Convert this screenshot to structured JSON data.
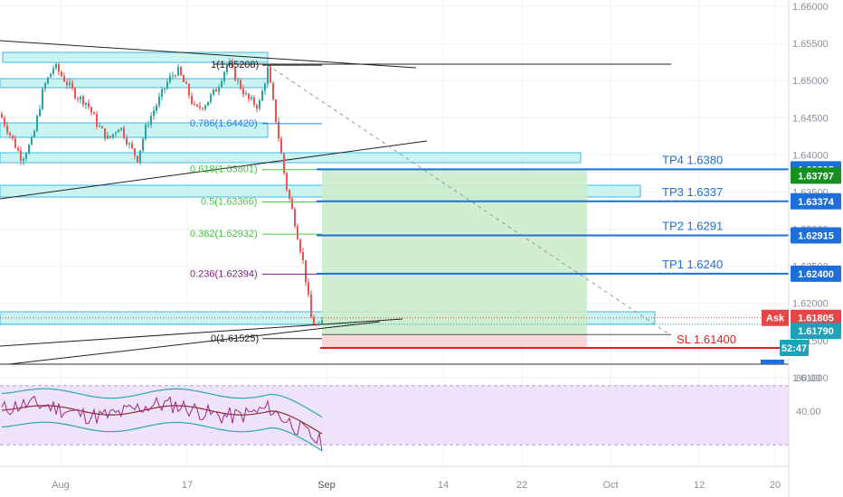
{
  "chart_data": {
    "type": "candlestick",
    "price_axis": {
      "ticks": [
        "1.66000",
        "1.65500",
        "1.65000",
        "1.64500",
        "1.64000",
        "1.63500",
        "1.63000",
        "1.62500",
        "1.62000",
        "1.61500",
        "1.61000"
      ],
      "ylim": [
        1.613,
        1.662
      ]
    },
    "time_axis": {
      "ticks": [
        "Aug",
        "17",
        "Sep",
        "14",
        "22",
        "Oct",
        "12",
        "20"
      ]
    },
    "rsi_axis": {
      "ticks": [
        "80.00",
        "40.00"
      ],
      "ylim": [
        0,
        100
      ]
    },
    "fibonacci": [
      {
        "label": "1(1.65208)",
        "price": 1.65208,
        "color": "#222222"
      },
      {
        "label": "0.786(1.64420)",
        "price": 1.6442,
        "color": "#2a7de1"
      },
      {
        "label": "0.618(1.63801)",
        "price": 1.63801,
        "color": "#43c443"
      },
      {
        "label": "0.5(1.63366)",
        "price": 1.63366,
        "color": "#43c443"
      },
      {
        "label": "0.382(1.62932)",
        "price": 1.62932,
        "color": "#43c443"
      },
      {
        "label": "0.236(1.62394)",
        "price": 1.62394,
        "color": "#7b1f7b"
      },
      {
        "label": "0(1.61525)",
        "price": 1.61525,
        "color": "#222222"
      }
    ],
    "targets": [
      {
        "label": "TP4 1.6380",
        "price": 1.63805
      },
      {
        "label": "TP3 1.6337",
        "price": 1.63374
      },
      {
        "label": "TP2 1.6291",
        "price": 1.62915
      },
      {
        "label": "TP1 1.6240",
        "price": 1.624
      }
    ],
    "stop_loss": {
      "label": "SL 1.61400",
      "price": 1.614
    },
    "price_badges": [
      {
        "text": "1.63805",
        "price": 1.63805,
        "color": "#1e6fd9"
      },
      {
        "text": "1.63797",
        "price": 1.6372,
        "color": "#16911e"
      },
      {
        "text": "1.63374",
        "price": 1.63374,
        "color": "#1e6fd9"
      },
      {
        "text": "1.62915",
        "price": 1.62915,
        "color": "#1e6fd9"
      },
      {
        "text": "1.62400",
        "price": 1.624,
        "color": "#1e6fd9"
      },
      {
        "text": "1.61805",
        "price": 1.61805,
        "color": "#e64545"
      },
      {
        "text": "1.61790",
        "price": 1.6163,
        "color": "#1ba3b9"
      },
      {
        "text": "52:47",
        "price": 1.614,
        "color": "#1ba3b9"
      }
    ],
    "ask_label": "Ask",
    "colors": {
      "up": "#26a69a",
      "down": "#ef5350",
      "target": "#1e6fd9",
      "stop": "#e02020",
      "zone_fill": "#b7f0ee",
      "zone_stroke": "#43b7e6",
      "profit_fill": "#cdeccc",
      "loss_fill": "#f8d6d6",
      "rsi_bg": "#efe3fb",
      "rsi_line": "#a0287e",
      "rsi_ma": "#8b2c2c",
      "rsi_band": "#2aa7b3"
    }
  }
}
